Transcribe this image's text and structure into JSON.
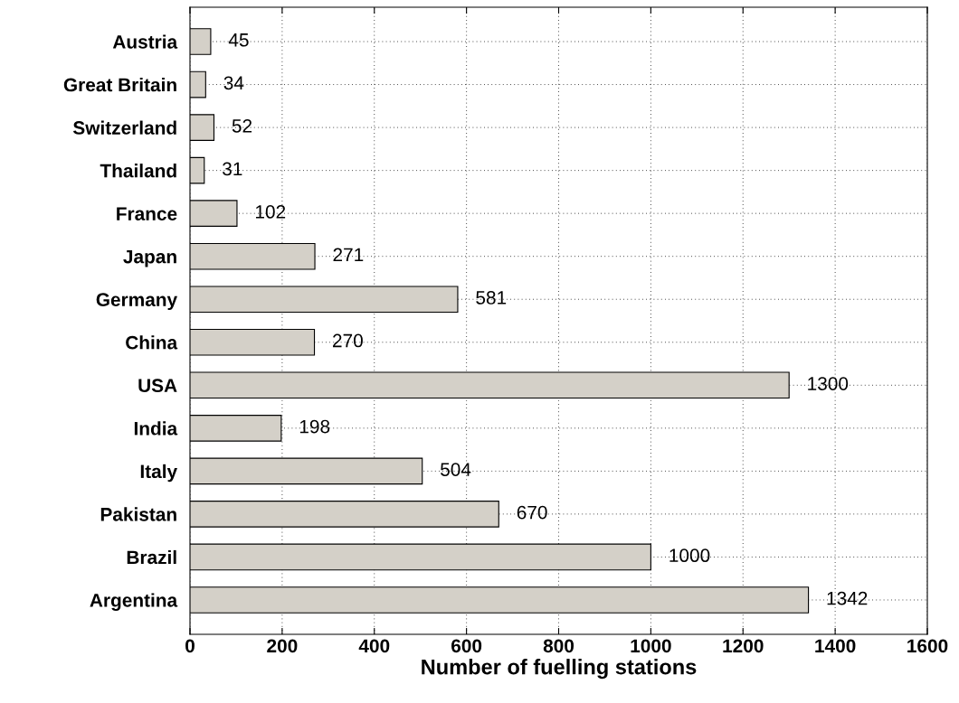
{
  "chart_data": {
    "type": "bar",
    "orientation": "horizontal",
    "xlabel": "Number of fuelling stations",
    "categories": [
      "Austria",
      "Great Britain",
      "Switzerland",
      "Thailand",
      "France",
      "Japan",
      "Germany",
      "China",
      "USA",
      "India",
      "Italy",
      "Pakistan",
      "Brazil",
      "Argentina"
    ],
    "values": [
      45,
      34,
      52,
      31,
      102,
      271,
      581,
      270,
      1300,
      198,
      504,
      670,
      1000,
      1342
    ],
    "color": "#d4d0c8",
    "xlim": [
      0,
      1600
    ],
    "xticks": [
      0,
      200,
      400,
      600,
      800,
      1000,
      1200,
      1400,
      1600
    ],
    "grid": true,
    "data_labels": true
  }
}
